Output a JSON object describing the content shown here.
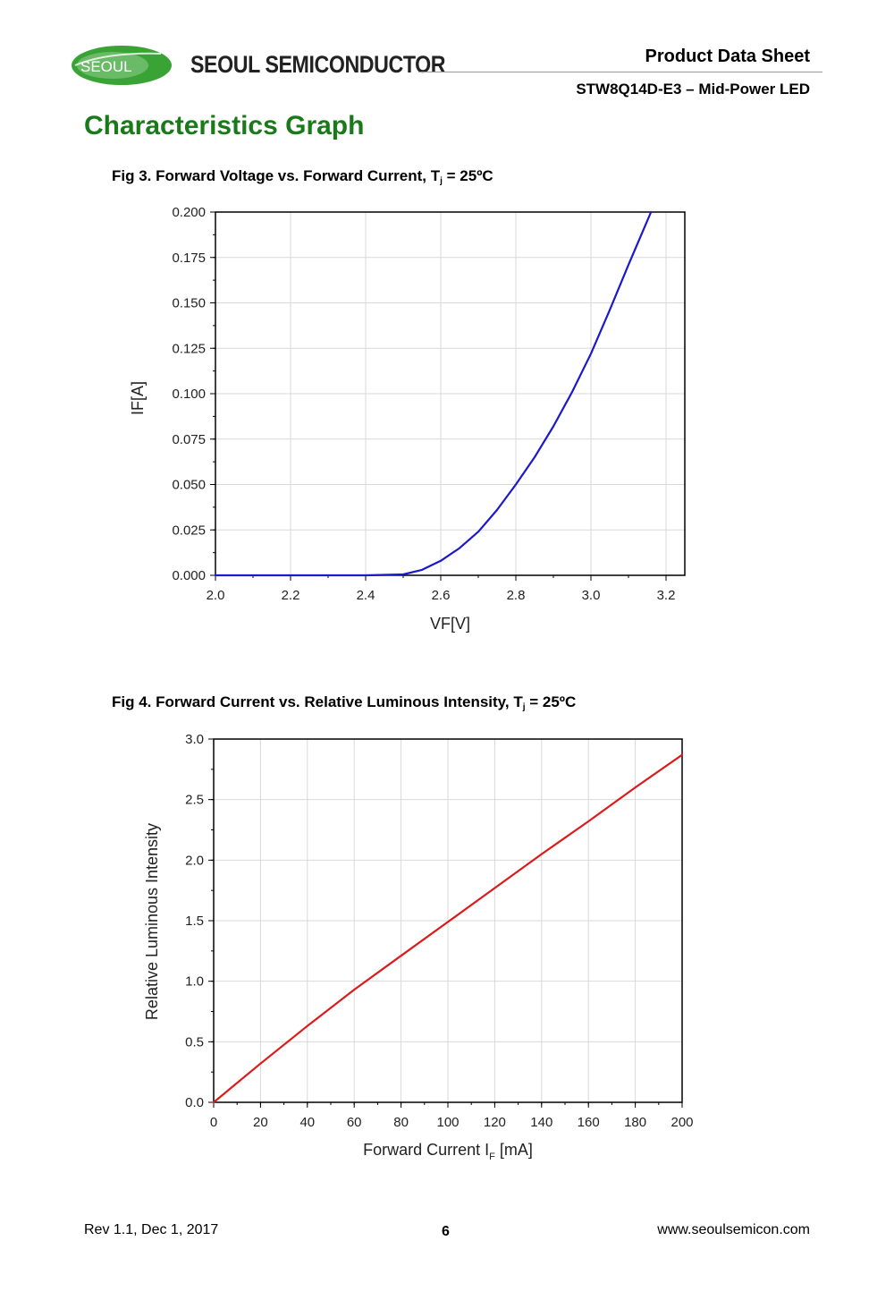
{
  "header": {
    "logo_text": "SEOUL",
    "brand": "SEOUL SEMICONDUCTOR",
    "doc_type": "Product Data Sheet",
    "product": "STW8Q14D-E3 – Mid-Power LED"
  },
  "section_title": "Characteristics Graph",
  "fig3": {
    "title_main": "Fig 3. Forward Voltage vs. Forward Current, T",
    "title_sub": "j",
    "title_tail": " = 25ºC"
  },
  "fig4": {
    "title_main": "Fig 4. Forward Current vs. Relative Luminous Intensity, T",
    "title_sub": "j",
    "title_tail": " = 25ºC"
  },
  "colors": {
    "brand_green": "#3aa335",
    "title_green": "#1a7a1a",
    "fig3_line": "#1a1acc",
    "fig4_line": "#dd1a1a"
  },
  "chart_data": [
    {
      "type": "line",
      "xlabel": "VF[V]",
      "ylabel": "IF[A]",
      "xlim": [
        2.0,
        3.25
      ],
      "ylim": [
        0.0,
        0.2
      ],
      "xticks": [
        "2.0",
        "2.2",
        "2.4",
        "2.6",
        "2.8",
        "3.0",
        "3.2"
      ],
      "yticks": [
        "0.000",
        "0.025",
        "0.050",
        "0.075",
        "0.100",
        "0.125",
        "0.150",
        "0.175",
        "0.200"
      ],
      "grid": true,
      "series": [
        {
          "color": "#1a1acc",
          "x": [
            2.0,
            2.4,
            2.5,
            2.55,
            2.6,
            2.65,
            2.7,
            2.75,
            2.8,
            2.85,
            2.9,
            2.95,
            3.0,
            3.05,
            3.1,
            3.16
          ],
          "y": [
            0.0,
            0.0,
            0.0005,
            0.003,
            0.008,
            0.015,
            0.024,
            0.036,
            0.05,
            0.065,
            0.082,
            0.101,
            0.122,
            0.146,
            0.171,
            0.2
          ]
        }
      ]
    },
    {
      "type": "line",
      "xlabel_main": "Forward Current I",
      "xlabel_sub": "F",
      "xlabel_tail": " [mA]",
      "ylabel": "Relative Luminous Intensity",
      "xlim": [
        0,
        200
      ],
      "ylim": [
        0.0,
        3.0
      ],
      "xticks": [
        "0",
        "20",
        "40",
        "60",
        "80",
        "100",
        "120",
        "140",
        "160",
        "180",
        "200"
      ],
      "yticks": [
        "0.0",
        "0.5",
        "1.0",
        "1.5",
        "2.0",
        "2.5",
        "3.0"
      ],
      "grid": true,
      "series": [
        {
          "color": "#dd1a1a",
          "x": [
            0,
            20,
            40,
            60,
            80,
            100,
            120,
            140,
            160,
            180,
            200
          ],
          "y": [
            0.0,
            0.32,
            0.63,
            0.93,
            1.21,
            1.49,
            1.77,
            2.05,
            2.32,
            2.6,
            2.87
          ]
        }
      ]
    }
  ],
  "footer": {
    "revision": "Rev 1.1, Dec 1, 2017",
    "page": "6",
    "website": "www.seoulsemicon.com"
  }
}
